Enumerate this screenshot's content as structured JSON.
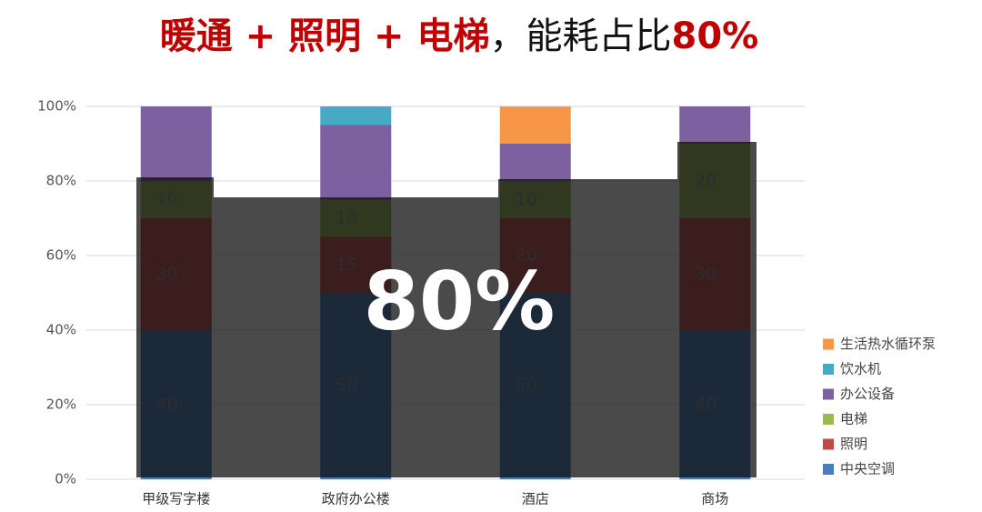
{
  "chart_data": {
    "type": "stacked_bar",
    "title_parts": [
      "暖通 + 照明 + 电梯",
      "，能耗占比",
      "80%"
    ],
    "annotation": "80%",
    "categories": [
      "甲级写字楼",
      "政府办公楼",
      "酒店",
      "商场"
    ],
    "series": [
      {
        "name": "中央空调",
        "color": "#4a7ebb",
        "values": [
          40,
          50,
          50,
          40
        ],
        "show_labels": true
      },
      {
        "name": "照明",
        "color": "#be4b48",
        "values": [
          30,
          15,
          20,
          30
        ],
        "show_labels": true
      },
      {
        "name": "电梯",
        "color": "#98b954",
        "values": [
          10,
          10,
          10,
          20
        ],
        "show_labels": true
      },
      {
        "name": "办公设备",
        "color": "#7d60a0",
        "values": [
          20,
          20,
          10,
          10
        ]
      },
      {
        "name": "饮水机",
        "color": "#46aac5",
        "values": [
          0,
          5,
          0,
          0
        ]
      },
      {
        "name": "生活热水循环泵",
        "color": "#f79646",
        "values": [
          0,
          0,
          10,
          0
        ]
      }
    ],
    "ylim": [
      0,
      100
    ],
    "yticks": [
      {
        "value": 0,
        "label": "0%"
      },
      {
        "value": 20,
        "label": "20%"
      },
      {
        "value": 40,
        "label": "40%"
      },
      {
        "value": 60,
        "label": "60%"
      },
      {
        "value": 80,
        "label": "80%"
      },
      {
        "value": 100,
        "label": "100%"
      }
    ],
    "grid": true
  }
}
